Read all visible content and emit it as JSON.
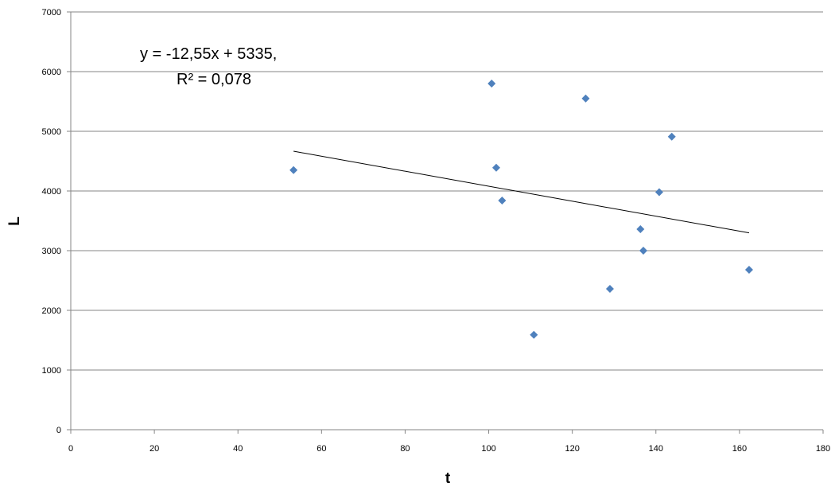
{
  "chart_data": {
    "type": "scatter",
    "xlabel": "t",
    "ylabel": "L",
    "xlim": [
      0,
      180
    ],
    "ylim": [
      0,
      7000
    ],
    "x_ticks": [
      0,
      20,
      40,
      60,
      80,
      100,
      120,
      140,
      160,
      180
    ],
    "y_ticks": [
      0,
      1000,
      2000,
      3000,
      4000,
      5000,
      6000,
      7000
    ],
    "grid": "horizontal",
    "marker": "diamond",
    "marker_color": "#4f81bd",
    "points": [
      {
        "x": 53.3,
        "y": 4350
      },
      {
        "x": 100.7,
        "y": 5800
      },
      {
        "x": 101.8,
        "y": 4390
      },
      {
        "x": 103.2,
        "y": 3840
      },
      {
        "x": 110.8,
        "y": 1590
      },
      {
        "x": 123.2,
        "y": 5550
      },
      {
        "x": 129,
        "y": 2360
      },
      {
        "x": 136.3,
        "y": 3360
      },
      {
        "x": 137,
        "y": 3000
      },
      {
        "x": 140.8,
        "y": 3980
      },
      {
        "x": 143.8,
        "y": 4910
      },
      {
        "x": 162.3,
        "y": 2680
      }
    ],
    "trendline": {
      "type": "linear",
      "slope": -12.55,
      "intercept": 5335,
      "x_range": [
        53.3,
        162.3
      ],
      "color": "#000000"
    },
    "annotation": {
      "line1": "y = -12,55x + 5335,",
      "line2": "R² = 0,078"
    }
  }
}
